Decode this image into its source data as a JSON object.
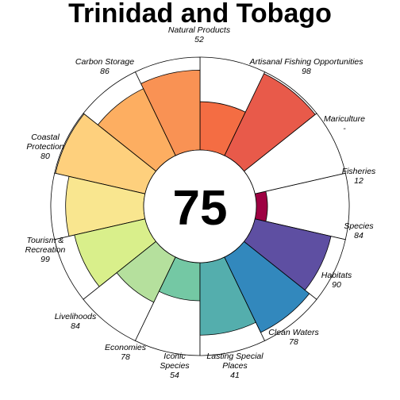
{
  "chart_data": {
    "type": "flower",
    "title": "Trinidad and Tobago",
    "center_score": "75",
    "max_score": 100,
    "petals": [
      {
        "label": [
          "Fisheries"
        ],
        "value_text": "12",
        "value": 12,
        "color": "#9E0142"
      },
      {
        "label": [
          "Mariculture"
        ],
        "value_text": "-",
        "value": null,
        "color": "#D53E4F"
      },
      {
        "label": [
          "Artisanal Fishing Opportunities"
        ],
        "value_text": "98",
        "value": 98,
        "color": "#E85A4A"
      },
      {
        "label": [
          "Natural Products"
        ],
        "value_text": "52",
        "value": 52,
        "color": "#F46D43"
      },
      {
        "label": [
          "Carbon Storage"
        ],
        "value_text": "86",
        "value": 86,
        "color": "#F99254"
      },
      {
        "label": [
          "Coastal",
          "Protection"
        ],
        "value_text": "80",
        "value": 80,
        "color": "#FDAE61"
      },
      {
        "label": [
          "Tourism &",
          "Recreation"
        ],
        "value_text": "99",
        "value": 99,
        "color": "#FED07D"
      },
      {
        "label": [
          "Livelihoods"
        ],
        "value_text": "84",
        "value": 84,
        "color": "#F9E68F"
      },
      {
        "label": [
          "Economies"
        ],
        "value_text": "78",
        "value": 78,
        "color": "#D9EF8B"
      },
      {
        "label": [
          "Iconic",
          "Species"
        ],
        "value_text": "54",
        "value": 54,
        "color": "#B5E09D"
      },
      {
        "label": [
          "Lasting Special",
          "Places"
        ],
        "value_text": "41",
        "value": 41,
        "color": "#74C8A4"
      },
      {
        "label": [
          "Clean Waters"
        ],
        "value_text": "78",
        "value": 78,
        "color": "#54AEAD"
      },
      {
        "label": [
          "Habitats"
        ],
        "value_text": "90",
        "value": 90,
        "color": "#3288BD"
      },
      {
        "label": [
          "Species"
        ],
        "value_text": "84",
        "value": 84,
        "color": "#5E4FA2"
      }
    ]
  }
}
